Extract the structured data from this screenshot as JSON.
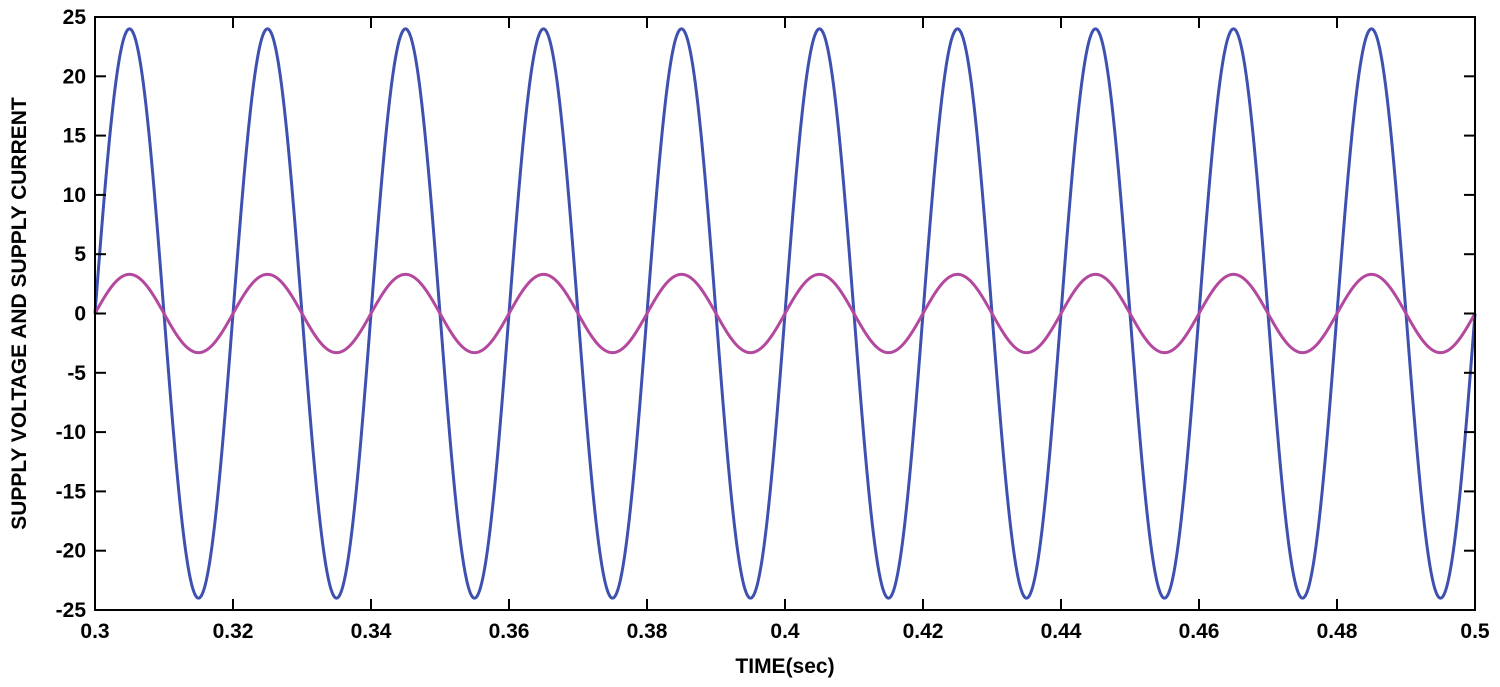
{
  "chart_data": {
    "type": "line",
    "title": "",
    "xlabel": "TIME(sec)",
    "ylabel": "SUPPLY VOLTAGE AND SUPPLY CURRENT",
    "xlim": [
      0.3,
      0.5
    ],
    "ylim": [
      -25,
      25
    ],
    "grid": false,
    "x_ticks": [
      0.3,
      0.32,
      0.34,
      0.36,
      0.38,
      0.4,
      0.42,
      0.44,
      0.46,
      0.48,
      0.5
    ],
    "x_tick_labels": [
      "0.3",
      "0.32",
      "0.34",
      "0.36",
      "0.38",
      "0.4",
      "0.42",
      "0.44",
      "0.46",
      "0.48",
      "0.5"
    ],
    "y_ticks": [
      25,
      20,
      15,
      10,
      5,
      0,
      -5,
      -10,
      -15,
      -20,
      -25
    ],
    "y_tick_labels": [
      "25",
      "20",
      "15",
      "10",
      "5",
      "0",
      "-5",
      "-10",
      "-15",
      "-20",
      "-25"
    ],
    "series": [
      {
        "name": "Supply voltage",
        "color": "#3f51b0",
        "waveform": "sine",
        "amplitude": 24,
        "frequency_hz": 50,
        "phase_deg": 0,
        "start_time": 0.3,
        "end_time": 0.5,
        "peak_times": [
          0.305,
          0.325,
          0.345,
          0.365,
          0.385,
          0.405,
          0.425,
          0.445,
          0.465,
          0.485
        ],
        "trough_times": [
          0.315,
          0.335,
          0.355,
          0.375,
          0.395,
          0.415,
          0.435,
          0.455,
          0.475,
          0.495
        ]
      },
      {
        "name": "Supply current",
        "color": "#b3489f",
        "waveform": "sine",
        "amplitude": 3.3,
        "frequency_hz": 50,
        "phase_deg": 0,
        "start_time": 0.3,
        "end_time": 0.5,
        "peak_times": [
          0.305,
          0.325,
          0.345,
          0.365,
          0.385,
          0.405,
          0.425,
          0.445,
          0.465,
          0.485
        ],
        "trough_times": [
          0.315,
          0.335,
          0.355,
          0.375,
          0.395,
          0.415,
          0.435,
          0.455,
          0.475,
          0.495
        ]
      }
    ]
  }
}
